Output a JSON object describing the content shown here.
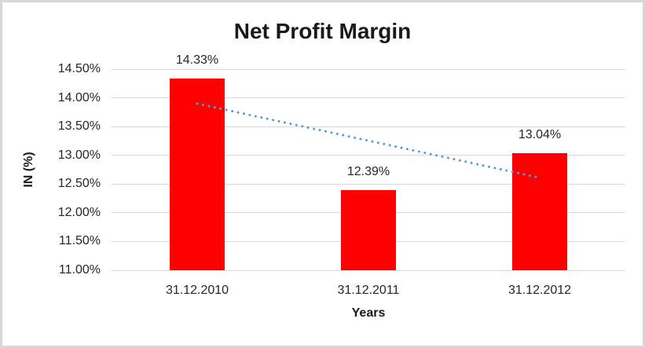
{
  "chart_data": {
    "type": "bar",
    "title": "Net Profit Margin",
    "xlabel": "Years",
    "ylabel": "IN (%)",
    "categories": [
      "31.12.2010",
      "31.12.2011",
      "31.12.2012"
    ],
    "values": [
      14.33,
      12.39,
      13.04
    ],
    "data_labels": [
      "14.33%",
      "12.39%",
      "13.04%"
    ],
    "y_ticks": [
      "14.50%",
      "14.00%",
      "13.50%",
      "13.00%",
      "12.50%",
      "12.00%",
      "11.50%",
      "11.00%"
    ],
    "ylim": [
      11.0,
      14.5
    ],
    "grid": true,
    "legend": "none",
    "bar_color": "#ff0000",
    "gridline_color": "#d9d9d9",
    "text_color": "#262626",
    "frame_border_color": "#d7d7d7",
    "trendline": {
      "type": "linear",
      "style": "dotted",
      "color": "#5b9bd5",
      "start_value": 13.9,
      "end_value": 12.61
    }
  }
}
